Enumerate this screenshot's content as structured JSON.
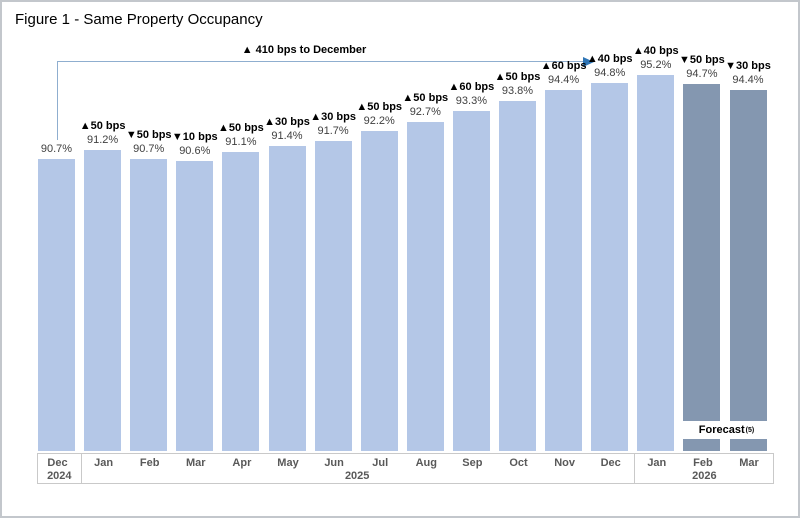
{
  "figure": {
    "title": "Figure 1 - Same Property Occupancy"
  },
  "chart_data": {
    "type": "bar",
    "title": "Figure 1 - Same Property Occupancy",
    "xlabel": "",
    "ylabel": "",
    "categories": [
      "Dec",
      "Jan",
      "Feb",
      "Mar",
      "Apr",
      "May",
      "Jun",
      "Jul",
      "Aug",
      "Sep",
      "Oct",
      "Nov",
      "Dec",
      "Jan",
      "Feb",
      "Mar"
    ],
    "year_groups": [
      {
        "label": "2024",
        "start": 0,
        "span": 1
      },
      {
        "label": "2025",
        "start": 1,
        "span": 12
      },
      {
        "label": "2026",
        "start": 13,
        "span": 3
      }
    ],
    "values": [
      90.7,
      91.2,
      90.7,
      90.6,
      91.1,
      91.4,
      91.7,
      92.2,
      92.7,
      93.3,
      93.8,
      94.4,
      94.8,
      95.2,
      94.7,
      94.4
    ],
    "value_labels": [
      "90.7%",
      "91.2%",
      "90.7%",
      "90.6%",
      "91.1%",
      "91.4%",
      "91.7%",
      "92.2%",
      "92.7%",
      "93.3%",
      "93.8%",
      "94.4%",
      "94.8%",
      "95.2%",
      "94.7%",
      "94.4%"
    ],
    "change_labels": [
      "",
      "▲50 bps",
      "▼50 bps",
      "▼10 bps",
      "▲50 bps",
      "▲30 bps",
      "▲30 bps",
      "▲50 bps",
      "▲50 bps",
      "▲60 bps",
      "▲50 bps",
      "▲60 bps",
      "▲40 bps",
      "▲40 bps",
      "▼50 bps",
      "▼30 bps"
    ],
    "is_forecast": [
      false,
      false,
      false,
      false,
      false,
      false,
      false,
      false,
      false,
      false,
      false,
      false,
      false,
      false,
      true,
      true
    ],
    "annotation": "▲ 410 bps to December",
    "forecast_label": {
      "text": "Forecast",
      "superscript": "(5)"
    },
    "colors": {
      "actual_bar": "#b4c7e7",
      "forecast_bar": "#8497b0",
      "arrow_head": "#2e75b6",
      "arrow_line": "#8faecf",
      "axis_border": "#c9c9c9",
      "value_text": "#404040",
      "change_text": "#000000",
      "tick_text": "#595959"
    },
    "ylim": [
      75.1,
      96
    ],
    "grid": false,
    "legend": false
  }
}
